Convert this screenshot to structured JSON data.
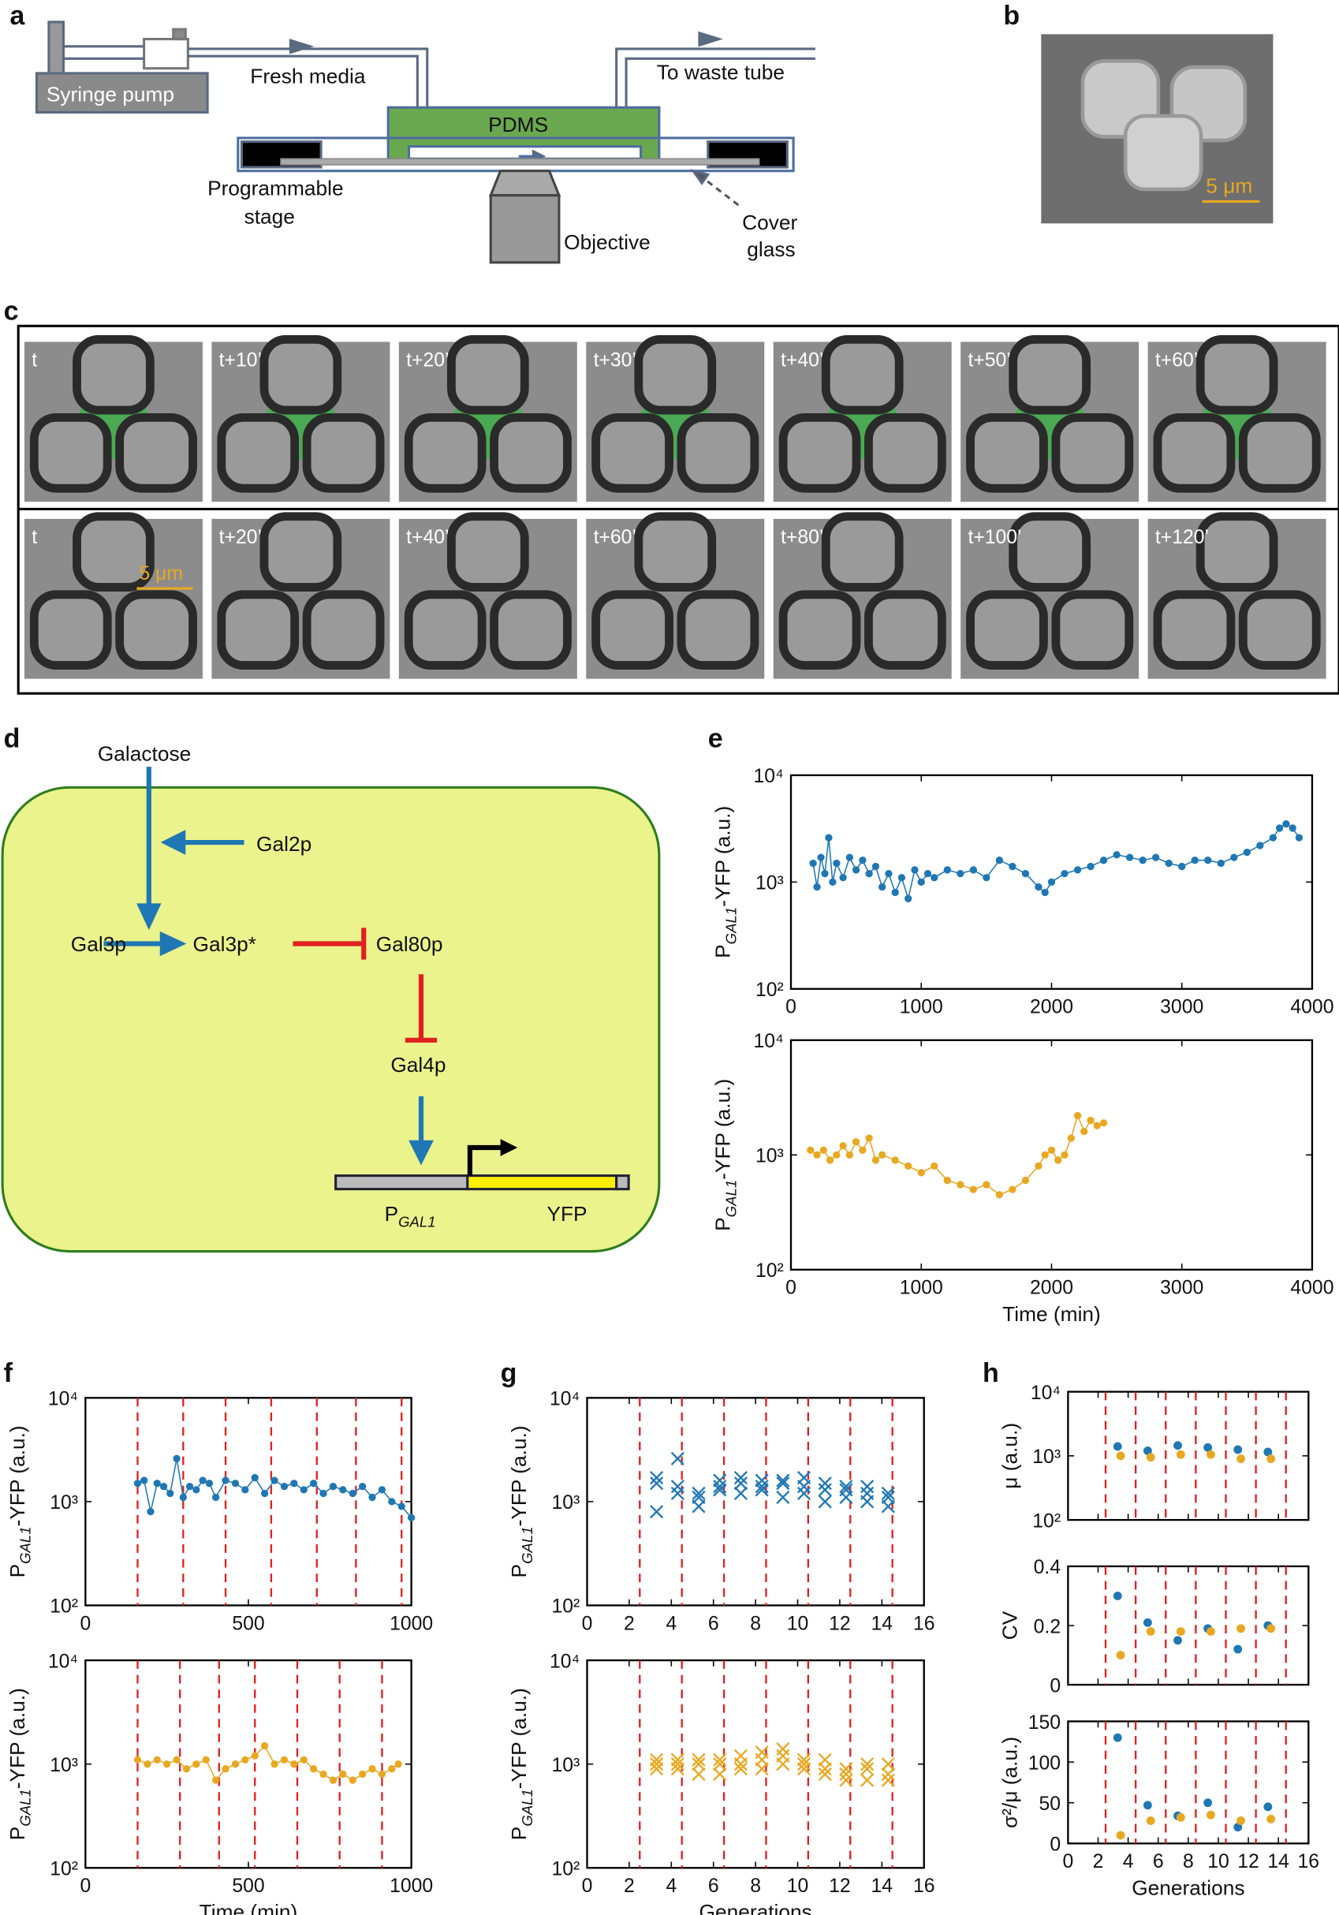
{
  "panels": [
    "a",
    "b",
    "c",
    "d",
    "e",
    "f",
    "g",
    "h"
  ],
  "panel_a": {
    "pump": "Syringe pump",
    "media": "Fresh media",
    "waste": "To waste tube",
    "pdms": "PDMS",
    "stage1": "Programmable",
    "stage2": "stage",
    "objective": "Objective",
    "cover1": "Cover",
    "cover2": "glass"
  },
  "panel_b": {
    "scale": "5 μm"
  },
  "panel_c": {
    "frames_top": [
      "t",
      "t+10’",
      "t+20’",
      "t+30’",
      "t+40’",
      "t+50’",
      "t+60’"
    ],
    "frames_bottom": [
      "t",
      "t+20’",
      "t+40’",
      "t+60’",
      "t+80’",
      "t+100’",
      "t+120’"
    ],
    "scale": "5 μm"
  },
  "panel_d": {
    "galactose": "Galactose",
    "gal2p": "Gal2p",
    "gal3p": "Gal3p",
    "gal3p_star": "Gal3p*",
    "gal80p": "Gal80p",
    "gal4p": "Gal4p",
    "promoter": {
      "main": "P",
      "sub": "GAL1"
    },
    "yfp": "YFP"
  },
  "chart_data": [
    {
      "type": "line",
      "ylabel": {
        "main": "P",
        "sub": "GAL1",
        "rest": "-YFP (a.u.)"
      },
      "log_y": true,
      "xlim": [
        0,
        4000
      ],
      "xticks": [
        0,
        1000,
        2000,
        3000,
        4000
      ],
      "ylim": [
        100,
        10000
      ],
      "yticks": [
        {
          "value": 100,
          "label": "10²"
        },
        {
          "value": 1000,
          "label": "10³"
        },
        {
          "value": 10000,
          "label": "10⁴"
        }
      ],
      "series": [
        {
          "color": "#1f77b4",
          "x": [
            170,
            200,
            230,
            260,
            290,
            320,
            350,
            400,
            450,
            500,
            550,
            600,
            650,
            700,
            750,
            800,
            850,
            900,
            950,
            1000,
            1050,
            1100,
            1200,
            1300,
            1400,
            1500,
            1600,
            1700,
            1800,
            1900,
            1950,
            2000,
            2100,
            2200,
            2300,
            2400,
            2500,
            2600,
            2700,
            2800,
            2900,
            3000,
            3100,
            3200,
            3300,
            3400,
            3500,
            3600,
            3700,
            3750,
            3800,
            3850,
            3900
          ],
          "values": [
            1500,
            900,
            1700,
            1200,
            2600,
            1000,
            1500,
            1100,
            1700,
            1300,
            1600,
            1200,
            1400,
            900,
            1200,
            800,
            1100,
            700,
            1300,
            1000,
            1200,
            1100,
            1300,
            1200,
            1300,
            1100,
            1600,
            1400,
            1200,
            900,
            800,
            1000,
            1200,
            1300,
            1400,
            1600,
            1800,
            1700,
            1600,
            1700,
            1500,
            1400,
            1600,
            1600,
            1500,
            1700,
            1900,
            2200,
            2600,
            3200,
            3500,
            3200,
            2600
          ]
        }
      ]
    },
    {
      "type": "line",
      "ylabel": {
        "main": "P",
        "sub": "GAL1",
        "rest": "-YFP (a.u.)"
      },
      "xlabel": "Time (min)",
      "log_y": true,
      "xlim": [
        0,
        4000
      ],
      "xticks": [
        0,
        1000,
        2000,
        3000,
        4000
      ],
      "ylim": [
        100,
        10000
      ],
      "yticks": [
        {
          "value": 100,
          "label": "10²"
        },
        {
          "value": 1000,
          "label": "10³"
        },
        {
          "value": 10000,
          "label": "10⁴"
        }
      ],
      "series": [
        {
          "color": "#e8a822",
          "x": [
            150,
            200,
            250,
            300,
            350,
            400,
            450,
            500,
            550,
            600,
            650,
            700,
            800,
            900,
            1000,
            1100,
            1200,
            1300,
            1400,
            1500,
            1600,
            1700,
            1800,
            1900,
            1950,
            2000,
            2050,
            2100,
            2150,
            2200,
            2250,
            2300,
            2350,
            2400
          ],
          "values": [
            1100,
            1000,
            1100,
            900,
            1000,
            1200,
            1000,
            1300,
            1100,
            1400,
            900,
            1000,
            900,
            800,
            700,
            800,
            600,
            550,
            500,
            550,
            450,
            500,
            600,
            800,
            1000,
            1100,
            900,
            1000,
            1400,
            2200,
            1600,
            2000,
            1800,
            1900
          ]
        }
      ]
    },
    {
      "type": "line",
      "ylabel": {
        "main": "P",
        "sub": "GAL1",
        "rest": "-YFP (a.u.)"
      },
      "log_y": true,
      "xlim": [
        0,
        1000
      ],
      "xticks": [
        0,
        500,
        1000
      ],
      "ylim": [
        100,
        10000
      ],
      "yticks": [
        {
          "value": 100,
          "label": "10²"
        },
        {
          "value": 1000,
          "label": "10³"
        },
        {
          "value": 10000,
          "label": "10⁴"
        }
      ],
      "vlines": [
        160,
        300,
        430,
        570,
        710,
        830,
        970
      ],
      "vline_color": "#e02020",
      "series": [
        {
          "color": "#1f77b4",
          "x": [
            160,
            180,
            200,
            220,
            240,
            260,
            280,
            300,
            320,
            340,
            360,
            380,
            400,
            430,
            460,
            490,
            520,
            550,
            580,
            610,
            640,
            670,
            700,
            730,
            760,
            790,
            820,
            850,
            880,
            910,
            940,
            970,
            1000
          ],
          "values": [
            1500,
            1600,
            800,
            1500,
            1400,
            1200,
            2600,
            1100,
            1400,
            1300,
            1600,
            1500,
            1100,
            1600,
            1500,
            1300,
            1700,
            1200,
            1600,
            1400,
            1500,
            1300,
            1500,
            1200,
            1400,
            1300,
            1200,
            1400,
            1100,
            1300,
            1000,
            900,
            700
          ]
        }
      ]
    },
    {
      "type": "line",
      "ylabel": {
        "main": "P",
        "sub": "GAL1",
        "rest": "-YFP (a.u.)"
      },
      "xlabel": "Time (min)",
      "log_y": true,
      "xlim": [
        0,
        1000
      ],
      "xticks": [
        0,
        500,
        1000
      ],
      "ylim": [
        100,
        10000
      ],
      "yticks": [
        {
          "value": 100,
          "label": "10²"
        },
        {
          "value": 1000,
          "label": "10³"
        },
        {
          "value": 10000,
          "label": "10⁴"
        }
      ],
      "vlines": [
        160,
        290,
        410,
        520,
        650,
        780,
        910
      ],
      "vline_color": "#e02020",
      "series": [
        {
          "color": "#e8a822",
          "x": [
            160,
            190,
            220,
            250,
            280,
            310,
            340,
            370,
            400,
            430,
            460,
            490,
            520,
            550,
            580,
            610,
            640,
            670,
            700,
            730,
            760,
            790,
            820,
            850,
            880,
            910,
            940,
            960
          ],
          "values": [
            1100,
            1000,
            1100,
            1000,
            1100,
            900,
            1000,
            1100,
            700,
            900,
            1000,
            1100,
            1200,
            1500,
            1000,
            1100,
            1000,
            1100,
            900,
            800,
            700,
            800,
            700,
            800,
            900,
            800,
            900,
            1000
          ]
        }
      ]
    },
    {
      "type": "scatter",
      "marker": "x",
      "ylabel": {
        "main": "P",
        "sub": "GAL1",
        "rest": "-YFP (a.u.)"
      },
      "log_y": true,
      "xlim": [
        0,
        16
      ],
      "xticks": [
        0,
        2,
        4,
        6,
        8,
        10,
        12,
        14,
        16
      ],
      "ylim": [
        100,
        10000
      ],
      "yticks": [
        {
          "value": 100,
          "label": "10²"
        },
        {
          "value": 1000,
          "label": "10³"
        },
        {
          "value": 10000,
          "label": "10⁴"
        }
      ],
      "vlines": [
        2.5,
        4.5,
        6.5,
        8.5,
        10.5,
        12.5,
        14.5
      ],
      "vline_color": "#e02020",
      "series": [
        {
          "color": "#1f77b4",
          "x": [
            3.3,
            3.3,
            3.3,
            4.3,
            4.3,
            4.3,
            5.3,
            5.3,
            5.3,
            6.3,
            6.3,
            6.3,
            7.3,
            7.3,
            7.3,
            8.3,
            8.3,
            8.3,
            9.3,
            9.3,
            9.3,
            10.3,
            10.3,
            10.3,
            11.3,
            11.3,
            11.3,
            12.3,
            12.3,
            12.3,
            13.3,
            13.3,
            13.3,
            14.3,
            14.3,
            14.3
          ],
          "values": [
            1500,
            800,
            1700,
            1200,
            2600,
            1400,
            1100,
            900,
            1200,
            1400,
            1300,
            1600,
            1500,
            1200,
            1700,
            1600,
            1300,
            1400,
            1500,
            1100,
            1600,
            1400,
            1200,
            1700,
            1300,
            1000,
            1500,
            1300,
            1100,
            1400,
            1200,
            1000,
            1400,
            1100,
            900,
            1200
          ]
        }
      ]
    },
    {
      "type": "scatter",
      "marker": "x",
      "ylabel": {
        "main": "P",
        "sub": "GAL1",
        "rest": "-YFP (a.u.)"
      },
      "xlabel": "Generations",
      "log_y": true,
      "xlim": [
        0,
        16
      ],
      "xticks": [
        0,
        2,
        4,
        6,
        8,
        10,
        12,
        14,
        16
      ],
      "ylim": [
        100,
        10000
      ],
      "yticks": [
        {
          "value": 100,
          "label": "10²"
        },
        {
          "value": 1000,
          "label": "10³"
        },
        {
          "value": 10000,
          "label": "10⁴"
        }
      ],
      "vlines": [
        2.5,
        4.5,
        6.5,
        8.5,
        10.5,
        12.5,
        14.5
      ],
      "vline_color": "#e02020",
      "series": [
        {
          "color": "#e8a822",
          "x": [
            3.3,
            3.3,
            3.3,
            4.3,
            4.3,
            4.3,
            5.3,
            5.3,
            5.3,
            6.3,
            6.3,
            6.3,
            7.3,
            7.3,
            7.3,
            8.3,
            8.3,
            8.3,
            9.3,
            9.3,
            9.3,
            10.3,
            10.3,
            10.3,
            11.3,
            11.3,
            11.3,
            12.3,
            12.3,
            12.3,
            13.3,
            13.3,
            13.3,
            14.3,
            14.3,
            14.3
          ],
          "values": [
            1100,
            1000,
            900,
            1100,
            900,
            1000,
            1000,
            800,
            1100,
            1000,
            800,
            1100,
            1200,
            900,
            1000,
            1100,
            1300,
            900,
            1200,
            1400,
            1000,
            1100,
            900,
            1000,
            900,
            800,
            1100,
            800,
            700,
            900,
            900,
            700,
            1000,
            800,
            700,
            1000
          ]
        }
      ]
    },
    {
      "type": "scatter",
      "marker": "dot",
      "ylabel": {
        "main": "μ (a.u.)"
      },
      "log_y": true,
      "xlim": [
        0,
        16
      ],
      "xticks": [
        0,
        2,
        4,
        6,
        8,
        10,
        12,
        14,
        16
      ],
      "xtick_labels": false,
      "ylim": [
        100,
        10000
      ],
      "yticks": [
        {
          "value": 100,
          "label": "10²"
        },
        {
          "value": 1000,
          "label": "10³"
        },
        {
          "value": 10000,
          "label": "10⁴"
        }
      ],
      "vlines": [
        2.5,
        4.5,
        6.5,
        8.5,
        10.5,
        12.5,
        14.5
      ],
      "vline_color": "#e02020",
      "series": [
        {
          "color": "#1f77b4",
          "x": [
            3.3,
            5.3,
            7.3,
            9.3,
            11.3,
            13.3
          ],
          "values": [
            1400,
            1200,
            1450,
            1350,
            1250,
            1150
          ]
        },
        {
          "color": "#e8a822",
          "x": [
            3.5,
            5.5,
            7.5,
            9.5,
            11.5,
            13.5
          ],
          "values": [
            1000,
            950,
            1050,
            1050,
            900,
            900
          ]
        }
      ]
    },
    {
      "type": "scatter",
      "marker": "dot",
      "ylabel": {
        "main": "CV"
      },
      "xlim": [
        0,
        16
      ],
      "xticks": [
        0,
        2,
        4,
        6,
        8,
        10,
        12,
        14,
        16
      ],
      "xtick_labels": false,
      "ylim": [
        0,
        0.4
      ],
      "yticks": [
        0,
        0.2,
        0.4
      ],
      "vlines": [
        2.5,
        4.5,
        6.5,
        8.5,
        10.5,
        12.5,
        14.5
      ],
      "vline_color": "#e02020",
      "series": [
        {
          "color": "#1f77b4",
          "x": [
            3.3,
            5.3,
            7.3,
            9.3,
            11.3,
            13.3
          ],
          "values": [
            0.3,
            0.21,
            0.15,
            0.19,
            0.12,
            0.2
          ]
        },
        {
          "color": "#e8a822",
          "x": [
            3.5,
            5.5,
            7.5,
            9.5,
            11.5,
            13.5
          ],
          "values": [
            0.1,
            0.18,
            0.18,
            0.18,
            0.19,
            0.19
          ]
        }
      ]
    },
    {
      "type": "scatter",
      "marker": "dot",
      "ylabel": {
        "main": "σ²/μ (a.u.)"
      },
      "xlabel": "Generations",
      "xlim": [
        0,
        16
      ],
      "xticks": [
        0,
        2,
        4,
        6,
        8,
        10,
        12,
        14,
        16
      ],
      "ylim": [
        0,
        150
      ],
      "yticks": [
        0,
        50,
        100,
        150
      ],
      "vlines": [
        2.5,
        4.5,
        6.5,
        8.5,
        10.5,
        12.5,
        14.5
      ],
      "vline_color": "#e02020",
      "series": [
        {
          "color": "#1f77b4",
          "x": [
            3.3,
            5.3,
            7.3,
            9.3,
            11.3,
            13.3
          ],
          "values": [
            130,
            47,
            34,
            50,
            20,
            45
          ]
        },
        {
          "color": "#e8a822",
          "x": [
            3.5,
            5.5,
            7.5,
            9.5,
            11.5,
            13.5
          ],
          "values": [
            10,
            28,
            32,
            35,
            28,
            30
          ]
        }
      ]
    }
  ]
}
